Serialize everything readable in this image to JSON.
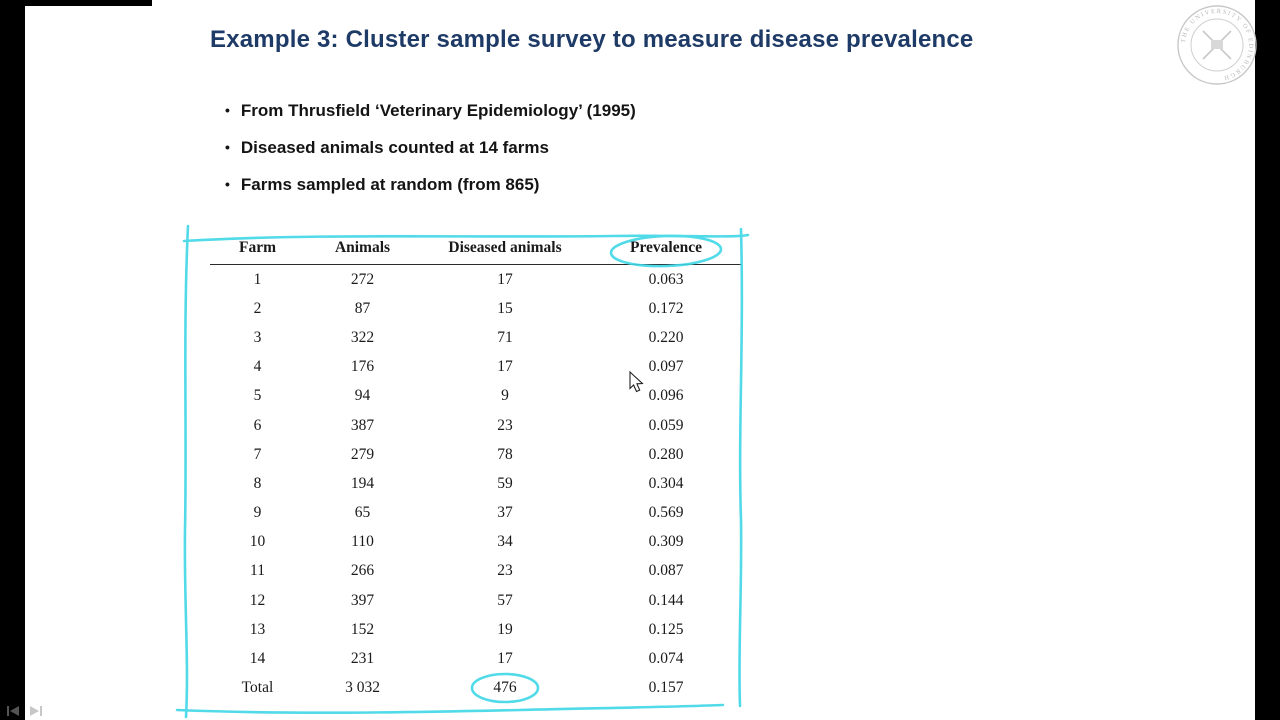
{
  "colors": {
    "accent": "#3fd6e6",
    "title-color": "#1e3a66"
  },
  "slide": {
    "title": "Example 3: Cluster sample survey to measure disease prevalence",
    "bullet_char": "•",
    "bullets": [
      "From Thrusfield ‘Veterinary Epidemiology’ (1995)",
      "Diseased animals counted at 14 farms",
      "Farms sampled at random (from 865)"
    ]
  },
  "table": {
    "headers": [
      "Farm",
      "Animals",
      "Diseased animals",
      "Prevalence"
    ],
    "rows": [
      [
        "1",
        "272",
        "17",
        "0.063"
      ],
      [
        "2",
        "87",
        "15",
        "0.172"
      ],
      [
        "3",
        "322",
        "71",
        "0.220"
      ],
      [
        "4",
        "176",
        "17",
        "0.097"
      ],
      [
        "5",
        "94",
        "9",
        "0.096"
      ],
      [
        "6",
        "387",
        "23",
        "0.059"
      ],
      [
        "7",
        "279",
        "78",
        "0.280"
      ],
      [
        "8",
        "194",
        "59",
        "0.304"
      ],
      [
        "9",
        "65",
        "37",
        "0.569"
      ],
      [
        "10",
        "110",
        "34",
        "0.309"
      ],
      [
        "11",
        "266",
        "23",
        "0.087"
      ],
      [
        "12",
        "397",
        "57",
        "0.144"
      ],
      [
        "13",
        "152",
        "19",
        "0.125"
      ],
      [
        "14",
        "231",
        "17",
        "0.074"
      ],
      [
        "Total",
        "3 032",
        "476",
        "0.157"
      ]
    ]
  },
  "annotations": {
    "items": [
      "hand-drawn box around table",
      "circle around Prevalence header",
      "circle around total diseased animals 476"
    ]
  },
  "logo": {
    "text": "THE UNIVERSITY OF EDINBURGH"
  }
}
